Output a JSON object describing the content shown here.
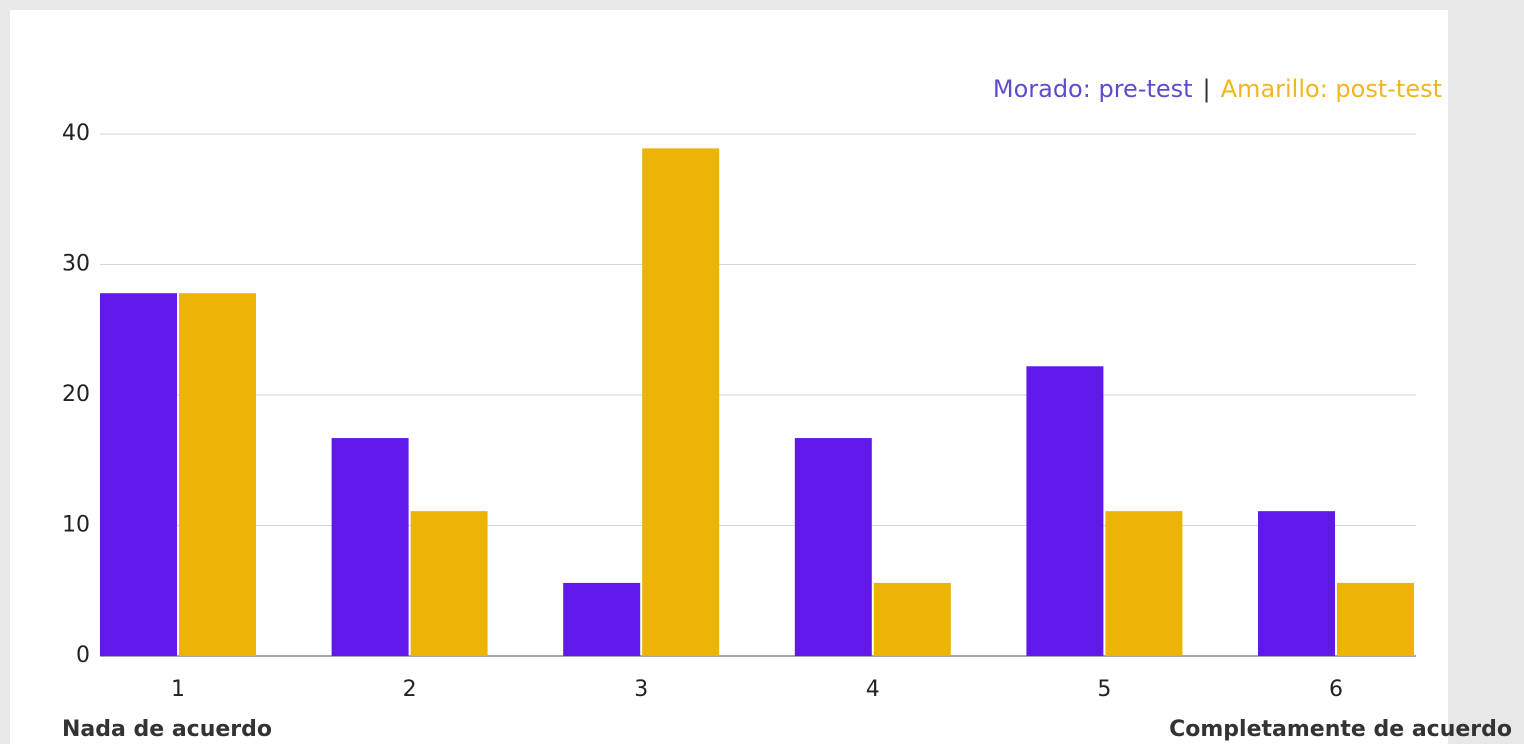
{
  "chart_data": {
    "type": "bar",
    "categories": [
      "1",
      "2",
      "3",
      "4",
      "5",
      "6"
    ],
    "series": [
      {
        "name": "Morado: pre-test",
        "color": "#6119ea",
        "text_color": "#5b4dd0",
        "values": [
          27.8,
          16.7,
          5.6,
          16.7,
          22.2,
          11.1
        ]
      },
      {
        "name": "Amarillo: post-test",
        "color": "#ecb406",
        "text_color": "#f0b620",
        "values": [
          27.8,
          11.1,
          38.9,
          5.6,
          11.1,
          5.6
        ]
      }
    ],
    "legend_separator": "|",
    "x_label_left": "Nada de acuerdo",
    "x_label_right": "Completamente de acuerdo",
    "ylim": [
      0,
      40
    ],
    "yticks": [
      0,
      10,
      20,
      30,
      40
    ],
    "grid": true
  }
}
